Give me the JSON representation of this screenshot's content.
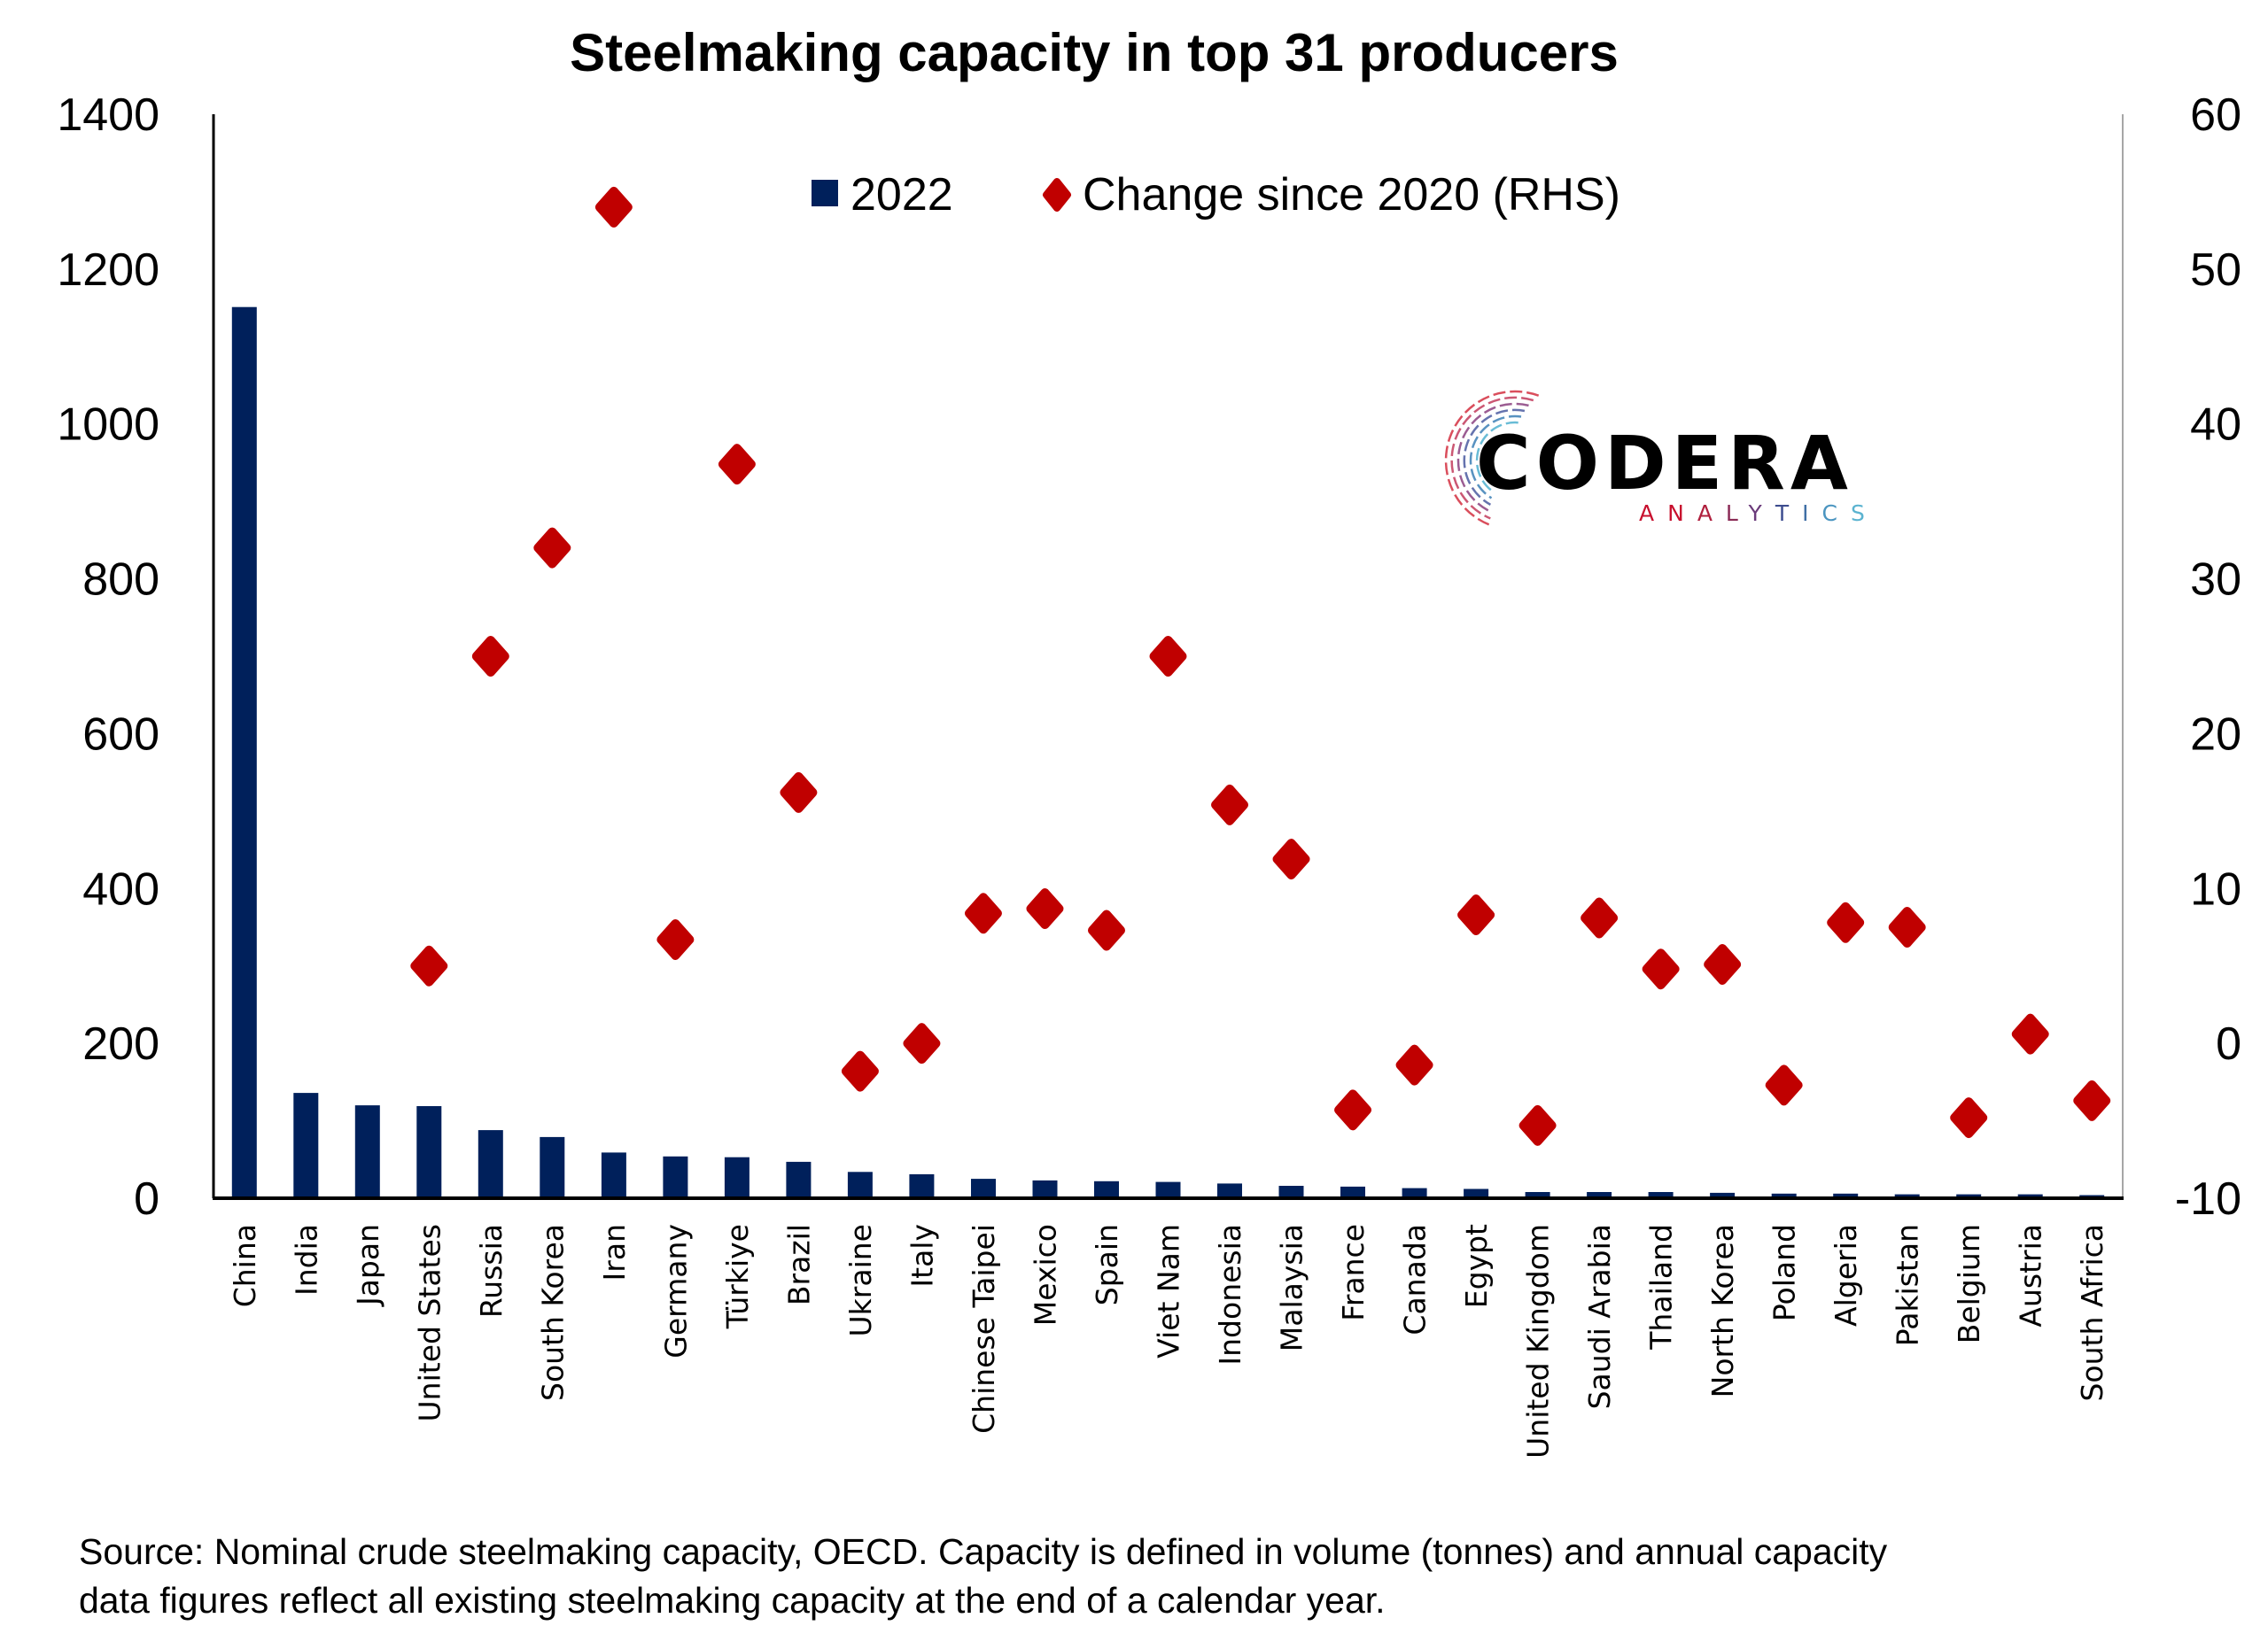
{
  "chart_data": {
    "type": "bar",
    "title": "Steelmaking capacity in top 31 producers",
    "xlabel": "",
    "ylabel": "",
    "ylabel_right": "",
    "ylim": [
      0,
      1400
    ],
    "ylim_right": [
      -10,
      60
    ],
    "yticks": [
      0,
      200,
      400,
      600,
      800,
      1000,
      1200,
      1400
    ],
    "yticks_right": [
      -10,
      0,
      10,
      20,
      30,
      40,
      50,
      60
    ],
    "grid": false,
    "legend_position": "top-center",
    "categories": [
      "China",
      "India",
      "Japan",
      "United States",
      "Russia",
      "South Korea",
      "Iran",
      "Germany",
      "Türkiye",
      "Brazil",
      "Ukraine",
      "Italy",
      "Chinese Taipei",
      "Mexico",
      "Spain",
      "Viet Nam",
      "Indonesia",
      "Malaysia",
      "France",
      "Canada",
      "Egypt",
      "United Kingdom",
      "Saudi Arabia",
      "Thailand",
      "North Korea",
      "Poland",
      "Algeria",
      "Pakistan",
      "Belgium",
      "Austria",
      "South Africa"
    ],
    "series": [
      {
        "name": "2022",
        "type": "bar",
        "axis": "left",
        "color": "#00205B",
        "values": [
          1151,
          136,
          120,
          119,
          88,
          79,
          59,
          54,
          53,
          47,
          34,
          31,
          25,
          23,
          22,
          21,
          19,
          16,
          15,
          13,
          12,
          8,
          8,
          8,
          7,
          6,
          6,
          5,
          5,
          5,
          4
        ]
      },
      {
        "name": "Change since 2020 (RHS)",
        "type": "scatter",
        "marker": "diamond",
        "axis": "right",
        "color": "#C00000",
        "values": [
          null,
          null,
          null,
          5.0,
          25.0,
          32.0,
          54.0,
          6.7,
          37.4,
          16.2,
          -1.8,
          0.0,
          8.4,
          8.7,
          7.3,
          25.0,
          15.4,
          11.9,
          -4.3,
          -1.4,
          8.3,
          -5.3,
          8.1,
          4.8,
          5.1,
          -2.7,
          7.8,
          7.5,
          -4.8,
          0.6,
          -3.7
        ]
      }
    ]
  },
  "legend": {
    "bar_label": "2022",
    "diamond_label": "Change since 2020 (RHS)"
  },
  "logo": {
    "name": "CODERA",
    "sub": "ANALYTICS"
  },
  "footer": {
    "line1": "Source: Nominal crude steelmaking capacity, OECD. Capacity is defined in volume (tonnes) and annual capacity",
    "line2": "data figures reflect all existing steelmaking capacity at the end of a calendar year."
  }
}
